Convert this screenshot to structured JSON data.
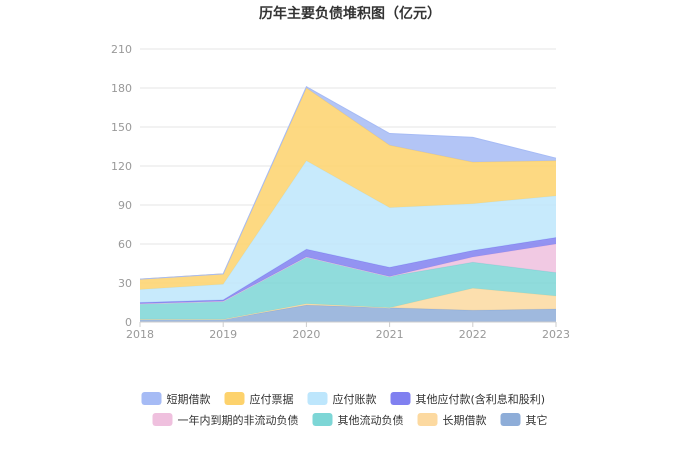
{
  "chart_data": {
    "type": "area",
    "stacked": true,
    "title": "历年主要负债堆积图（亿元）",
    "xlabel": "",
    "ylabel": "",
    "ylim": [
      0,
      210
    ],
    "yticks": [
      0,
      30,
      60,
      90,
      120,
      150,
      180,
      210
    ],
    "grid": true,
    "legend_position": "bottom",
    "x": [
      "2018",
      "2019",
      "2020",
      "2021",
      "2022",
      "2023"
    ],
    "series": [
      {
        "name": "其它",
        "color": "#8eadd8",
        "values": [
          2,
          2,
          13,
          11,
          9,
          10
        ]
      },
      {
        "name": "长期借款",
        "color": "#fcd9a0",
        "values": [
          0,
          0,
          1,
          0,
          17,
          10
        ]
      },
      {
        "name": "其他流动负债",
        "color": "#7dd6d6",
        "values": [
          12,
          14,
          36,
          24,
          20,
          18
        ]
      },
      {
        "name": "一年内到期的非流动负债",
        "color": "#efc0de",
        "values": [
          0,
          0,
          0,
          0,
          4,
          22
        ]
      },
      {
        "name": "其他应付款(含利息和股利)",
        "color": "#8080f0",
        "values": [
          1,
          1,
          6,
          7,
          5,
          5
        ]
      },
      {
        "name": "应付账款",
        "color": "#bde6fc",
        "values": [
          10,
          12,
          68,
          46,
          36,
          32
        ]
      },
      {
        "name": "应付票据",
        "color": "#fdd26c",
        "values": [
          8,
          8,
          56,
          48,
          32,
          27
        ]
      },
      {
        "name": "短期借款",
        "color": "#a6bbf5",
        "values": [
          0,
          0,
          1,
          9,
          19,
          2
        ]
      }
    ]
  }
}
